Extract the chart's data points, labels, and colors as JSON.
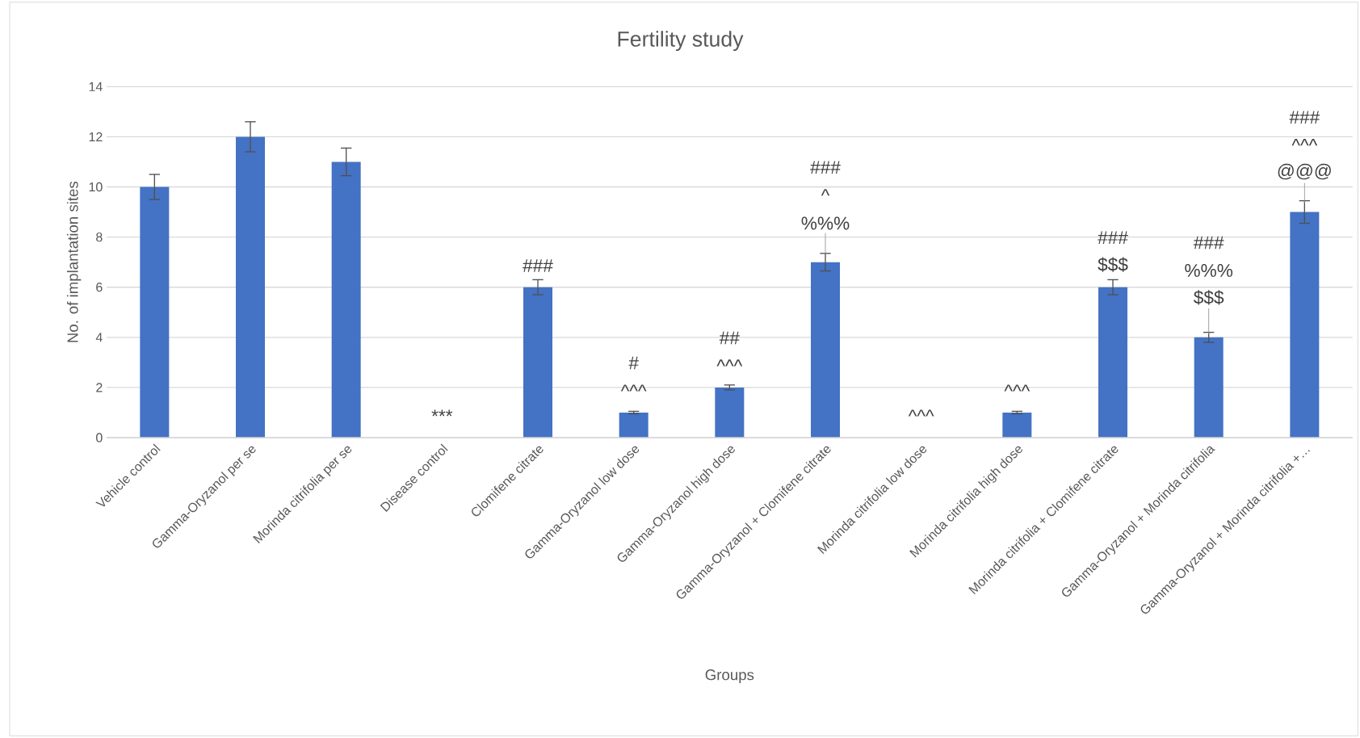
{
  "chart_data": {
    "type": "bar",
    "title": "Fertility study",
    "xlabel": "Groups",
    "ylabel": "No. of implantation sites",
    "categories": [
      "Vehicle control",
      "Gamma-Oryzanol per se",
      "Morinda citrifolia per se",
      "Disease control",
      "Clomifene citrate",
      "Gamma-Oryzanol low dose",
      "Gamma-Oryzanol high dose",
      "Gamma-Oryzanol + Clomifene citrate",
      "Morinda citrifolia low dose",
      "Morinda citrifolia high dose",
      "Morinda citrifolia + Clomifene citrate",
      "Gamma-Oryzanol + Morinda citrifolia",
      "Gamma-Oryzanol + Morinda citrifolia +…"
    ],
    "values": [
      10,
      12,
      11,
      0,
      6,
      1,
      2,
      7,
      0,
      1,
      6,
      4,
      9
    ],
    "errors": [
      0.5,
      0.6,
      0.55,
      null,
      0.3,
      0.05,
      0.1,
      0.35,
      null,
      0.05,
      0.3,
      0.2,
      0.45
    ],
    "color": "#4472c4",
    "ylim": [
      0,
      14
    ],
    "yticks": [
      0,
      2,
      4,
      6,
      8,
      10,
      12,
      14
    ],
    "grid": "y",
    "annotations": [
      {
        "text": "***",
        "x": "Disease control",
        "y": 0
      },
      {
        "text": "###",
        "x": "Clomifene citrate",
        "y": 6
      },
      {
        "text": "#",
        "x": "Gamma-Oryzanol low dose",
        "y": 1
      },
      {
        "text": "^^^",
        "x": "Gamma-Oryzanol low dose",
        "y": 1
      },
      {
        "text": "##",
        "x": "Gamma-Oryzanol high dose",
        "y": 2
      },
      {
        "text": "^^^",
        "x": "Gamma-Oryzanol high dose",
        "y": 2
      },
      "###",
      "^",
      {
        "text": "%%%",
        "x": "Gamma-Oryzanol + Clomifene citrate",
        "y": 7
      },
      {
        "text": "^^^",
        "x": "Morinda citrifolia low dose",
        "y": 0
      },
      {
        "text": "^^^",
        "x": "Morinda citrifolia high dose",
        "y": 1
      },
      {
        "text": "###",
        "x": "Morinda citrifolia + Clomifene citrate",
        "y": 6
      },
      {
        "text": "$$$",
        "x": "Morinda citrifolia + Clomifene citrate",
        "y": 6
      },
      "###",
      "%%%",
      {
        "text": "$$$",
        "x": "Gamma-Oryzanol + Morinda citrifolia",
        "y": 4
      },
      "###",
      "^^^",
      {
        "text": "@@@",
        "x": "Gamma-Oryzanol + Morinda citrifolia +…",
        "y": 9
      }
    ]
  }
}
